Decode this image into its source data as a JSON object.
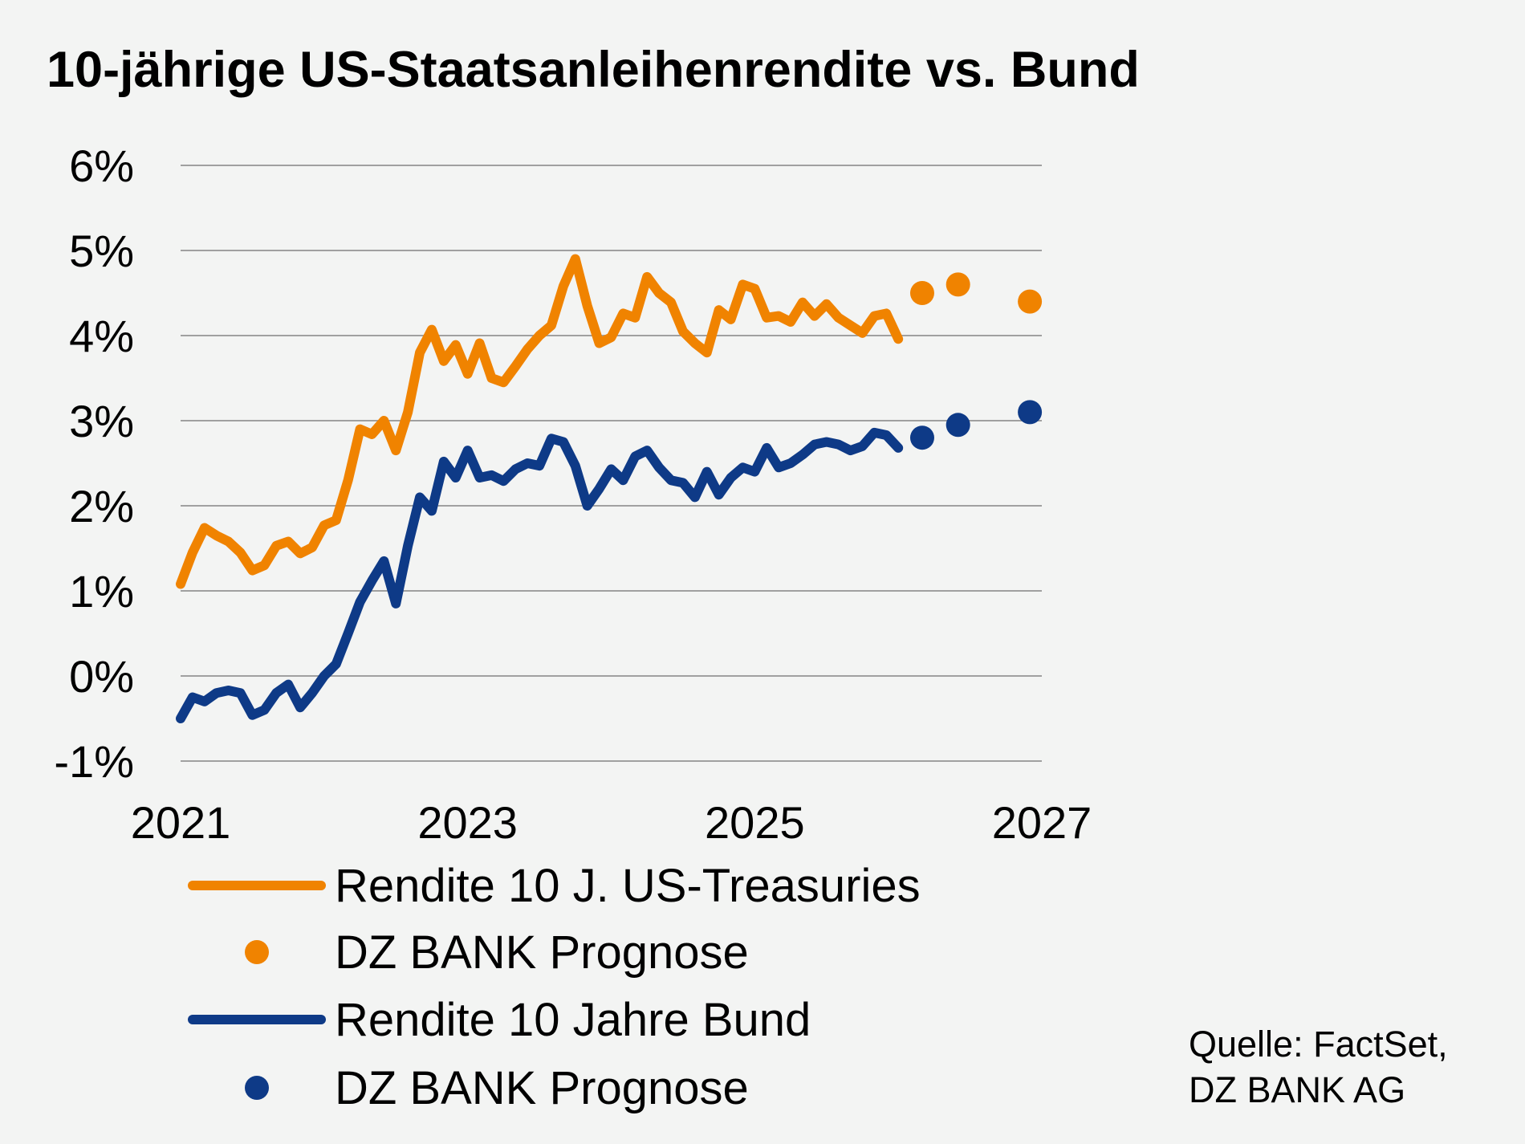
{
  "chart_data": {
    "type": "line",
    "title": "10-jährige US-Staatsanleihenrendite vs. Bund",
    "xlabel": "",
    "ylabel": "",
    "xlim": [
      2021,
      2027
    ],
    "ylim": [
      -1,
      6
    ],
    "x_ticks": [
      "2021",
      "2023",
      "2025",
      "2027"
    ],
    "y_ticks": [
      "-1%",
      "0%",
      "1%",
      "2%",
      "3%",
      "4%",
      "5%",
      "6%"
    ],
    "grid": "horizontal",
    "legend_placement": "bottom",
    "dates": [
      "2021-01",
      "2021-02",
      "2021-03",
      "2021-04",
      "2021-05",
      "2021-06",
      "2021-07",
      "2021-08",
      "2021-09",
      "2021-10",
      "2021-11",
      "2021-12",
      "2022-01",
      "2022-02",
      "2022-03",
      "2022-04",
      "2022-05",
      "2022-06",
      "2022-07",
      "2022-08",
      "2022-09",
      "2022-10",
      "2022-11",
      "2022-12",
      "2023-01",
      "2023-02",
      "2023-03",
      "2023-04",
      "2023-05",
      "2023-06",
      "2023-07",
      "2023-08",
      "2023-09",
      "2023-10",
      "2023-11",
      "2023-12",
      "2024-01",
      "2024-02",
      "2024-03",
      "2024-04",
      "2024-05",
      "2024-06",
      "2024-07",
      "2024-08",
      "2024-09",
      "2024-10",
      "2024-11",
      "2024-12",
      "2025-01",
      "2025-02",
      "2025-03",
      "2025-04",
      "2025-05",
      "2025-06",
      "2025-07",
      "2025-08",
      "2025-09",
      "2025-10",
      "2025-11",
      "2025-12",
      "2026-01"
    ],
    "series": [
      {
        "name": "Rendite 10 J. US-Treasuries",
        "color": "#F08300",
        "style": "line",
        "values": [
          1.08,
          1.45,
          1.74,
          1.65,
          1.58,
          1.45,
          1.24,
          1.3,
          1.53,
          1.58,
          1.44,
          1.51,
          1.77,
          1.83,
          2.3,
          2.9,
          2.84,
          3.0,
          2.65,
          3.1,
          3.8,
          4.07,
          3.7,
          3.89,
          3.55,
          3.91,
          3.5,
          3.45,
          3.64,
          3.84,
          4.0,
          4.12,
          4.58,
          4.9,
          4.35,
          3.91,
          3.98,
          4.26,
          4.21,
          4.69,
          4.5,
          4.39,
          4.05,
          3.91,
          3.8,
          4.3,
          4.19,
          4.6,
          4.55,
          4.21,
          4.23,
          4.16,
          4.39,
          4.23,
          4.37,
          4.21,
          4.12,
          4.03,
          4.23,
          4.26,
          3.96
        ]
      },
      {
        "name": "DZ BANK Prognose",
        "color": "#F08300",
        "style": "dots",
        "points": [
          {
            "date": "2026-03",
            "value": 4.5
          },
          {
            "date": "2026-06",
            "value": 4.6
          },
          {
            "date": "2026-12",
            "value": 4.4
          }
        ]
      },
      {
        "name": "Rendite 10 Jahre Bund",
        "color": "#0E3A87",
        "style": "line",
        "values": [
          -0.5,
          -0.25,
          -0.3,
          -0.2,
          -0.17,
          -0.2,
          -0.46,
          -0.4,
          -0.2,
          -0.1,
          -0.37,
          -0.2,
          0,
          0.14,
          0.5,
          0.87,
          1.12,
          1.35,
          0.85,
          1.53,
          2.1,
          1.94,
          2.52,
          2.33,
          2.65,
          2.33,
          2.36,
          2.29,
          2.43,
          2.5,
          2.47,
          2.79,
          2.75,
          2.47,
          2.0,
          2.2,
          2.43,
          2.3,
          2.58,
          2.65,
          2.45,
          2.3,
          2.27,
          2.1,
          2.4,
          2.13,
          2.33,
          2.45,
          2.4,
          2.68,
          2.45,
          2.5,
          2.6,
          2.72,
          2.75,
          2.72,
          2.65,
          2.7,
          2.86,
          2.83,
          2.68
        ]
      },
      {
        "name": "DZ BANK Prognose",
        "color": "#0E3A87",
        "style": "dots",
        "points": [
          {
            "date": "2026-03",
            "value": 2.8
          },
          {
            "date": "2026-06",
            "value": 2.95
          },
          {
            "date": "2026-12",
            "value": 3.1
          }
        ]
      }
    ]
  },
  "source": {
    "line1": "Quelle: FactSet,",
    "line2": "DZ BANK AG"
  },
  "colors": {
    "background": "#F3F4F3",
    "grid": "#A0A0A0"
  }
}
